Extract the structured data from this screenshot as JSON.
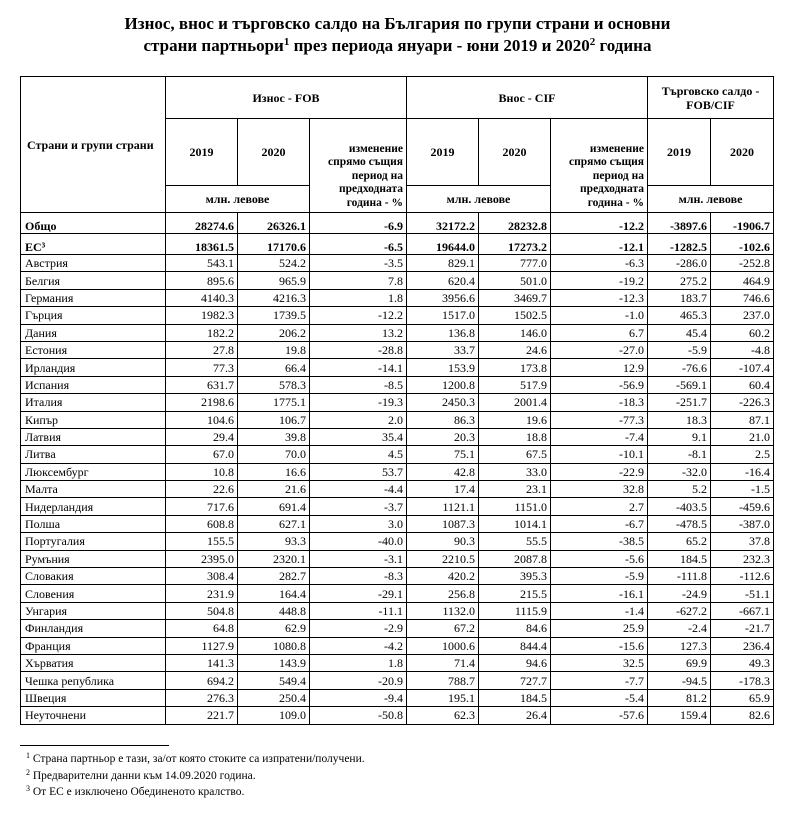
{
  "title": {
    "line1": "Износ, внос и търговско салдо на България по групи страни и основни",
    "line2a": "страни партньори",
    "sup1": "1",
    "line2b": " през периода януари - юни 2019 и 2020",
    "sup2": "2",
    "line2c": " година"
  },
  "header": {
    "countries": "Страни и групи страни",
    "export": "Износ - FOB",
    "import": "Внос - CIF",
    "balance": "Търговско салдо - FOB/CIF",
    "y2019": "2019",
    "y2020": "2020",
    "change": "изменение спрямо същия период на предходната година - %",
    "unit": "млн. левове"
  },
  "rows": [
    {
      "name": "Общо",
      "bold": true,
      "v": [
        "28274.6",
        "26326.1",
        "-6.9",
        "32172.2",
        "28232.8",
        "-12.2",
        "-3897.6",
        "-1906.7"
      ]
    },
    {
      "name": "ЕС³",
      "bold": true,
      "v": [
        "18361.5",
        "17170.6",
        "-6.5",
        "19644.0",
        "17273.2",
        "-12.1",
        "-1282.5",
        "-102.6"
      ]
    },
    {
      "name": "Австрия",
      "v": [
        "543.1",
        "524.2",
        "-3.5",
        "829.1",
        "777.0",
        "-6.3",
        "-286.0",
        "-252.8"
      ]
    },
    {
      "name": "Белгия",
      "v": [
        "895.6",
        "965.9",
        "7.8",
        "620.4",
        "501.0",
        "-19.2",
        "275.2",
        "464.9"
      ]
    },
    {
      "name": "Германия",
      "v": [
        "4140.3",
        "4216.3",
        "1.8",
        "3956.6",
        "3469.7",
        "-12.3",
        "183.7",
        "746.6"
      ]
    },
    {
      "name": "Гърция",
      "v": [
        "1982.3",
        "1739.5",
        "-12.2",
        "1517.0",
        "1502.5",
        "-1.0",
        "465.3",
        "237.0"
      ]
    },
    {
      "name": "Дания",
      "v": [
        "182.2",
        "206.2",
        "13.2",
        "136.8",
        "146.0",
        "6.7",
        "45.4",
        "60.2"
      ]
    },
    {
      "name": "Естония",
      "v": [
        "27.8",
        "19.8",
        "-28.8",
        "33.7",
        "24.6",
        "-27.0",
        "-5.9",
        "-4.8"
      ]
    },
    {
      "name": "Ирландия",
      "v": [
        "77.3",
        "66.4",
        "-14.1",
        "153.9",
        "173.8",
        "12.9",
        "-76.6",
        "-107.4"
      ]
    },
    {
      "name": "Испания",
      "v": [
        "631.7",
        "578.3",
        "-8.5",
        "1200.8",
        "517.9",
        "-56.9",
        "-569.1",
        "60.4"
      ]
    },
    {
      "name": "Италия",
      "v": [
        "2198.6",
        "1775.1",
        "-19.3",
        "2450.3",
        "2001.4",
        "-18.3",
        "-251.7",
        "-226.3"
      ]
    },
    {
      "name": "Кипър",
      "v": [
        "104.6",
        "106.7",
        "2.0",
        "86.3",
        "19.6",
        "-77.3",
        "18.3",
        "87.1"
      ]
    },
    {
      "name": "Латвия",
      "v": [
        "29.4",
        "39.8",
        "35.4",
        "20.3",
        "18.8",
        "-7.4",
        "9.1",
        "21.0"
      ]
    },
    {
      "name": "Литва",
      "v": [
        "67.0",
        "70.0",
        "4.5",
        "75.1",
        "67.5",
        "-10.1",
        "-8.1",
        "2.5"
      ]
    },
    {
      "name": "Люксембург",
      "v": [
        "10.8",
        "16.6",
        "53.7",
        "42.8",
        "33.0",
        "-22.9",
        "-32.0",
        "-16.4"
      ]
    },
    {
      "name": "Малта",
      "v": [
        "22.6",
        "21.6",
        "-4.4",
        "17.4",
        "23.1",
        "32.8",
        "5.2",
        "-1.5"
      ]
    },
    {
      "name": "Нидерландия",
      "v": [
        "717.6",
        "691.4",
        "-3.7",
        "1121.1",
        "1151.0",
        "2.7",
        "-403.5",
        "-459.6"
      ]
    },
    {
      "name": "Полша",
      "v": [
        "608.8",
        "627.1",
        "3.0",
        "1087.3",
        "1014.1",
        "-6.7",
        "-478.5",
        "-387.0"
      ]
    },
    {
      "name": "Португалия",
      "v": [
        "155.5",
        "93.3",
        "-40.0",
        "90.3",
        "55.5",
        "-38.5",
        "65.2",
        "37.8"
      ]
    },
    {
      "name": "Румъния",
      "v": [
        "2395.0",
        "2320.1",
        "-3.1",
        "2210.5",
        "2087.8",
        "-5.6",
        "184.5",
        "232.3"
      ]
    },
    {
      "name": "Словакия",
      "v": [
        "308.4",
        "282.7",
        "-8.3",
        "420.2",
        "395.3",
        "-5.9",
        "-111.8",
        "-112.6"
      ]
    },
    {
      "name": "Словения",
      "v": [
        "231.9",
        "164.4",
        "-29.1",
        "256.8",
        "215.5",
        "-16.1",
        "-24.9",
        "-51.1"
      ]
    },
    {
      "name": "Унгария",
      "v": [
        "504.8",
        "448.8",
        "-11.1",
        "1132.0",
        "1115.9",
        "-1.4",
        "-627.2",
        "-667.1"
      ]
    },
    {
      "name": "Финландия",
      "v": [
        "64.8",
        "62.9",
        "-2.9",
        "67.2",
        "84.6",
        "25.9",
        "-2.4",
        "-21.7"
      ]
    },
    {
      "name": "Франция",
      "v": [
        "1127.9",
        "1080.8",
        "-4.2",
        "1000.6",
        "844.4",
        "-15.6",
        "127.3",
        "236.4"
      ]
    },
    {
      "name": "Хърватия",
      "v": [
        "141.3",
        "143.9",
        "1.8",
        "71.4",
        "94.6",
        "32.5",
        "69.9",
        "49.3"
      ]
    },
    {
      "name": "Чешка република",
      "v": [
        "694.2",
        "549.4",
        "-20.9",
        "788.7",
        "727.7",
        "-7.7",
        "-94.5",
        "-178.3"
      ]
    },
    {
      "name": "Швеция",
      "v": [
        "276.3",
        "250.4",
        "-9.4",
        "195.1",
        "184.5",
        "-5.4",
        "81.2",
        "65.9"
      ]
    },
    {
      "name": "Неуточнени",
      "v": [
        "221.7",
        "109.0",
        "-50.8",
        "62.3",
        "26.4",
        "-57.6",
        "159.4",
        "82.6"
      ]
    }
  ],
  "footnotes": [
    {
      "sup": "1",
      "text": "Страна партньор е тази, за/от която стоките са изпратени/получени."
    },
    {
      "sup": "2",
      "text": "Предварителни данни към 14.09.2020 година."
    },
    {
      "sup": "3",
      "text": "От ЕС е изключено Обединеното кралство."
    }
  ]
}
